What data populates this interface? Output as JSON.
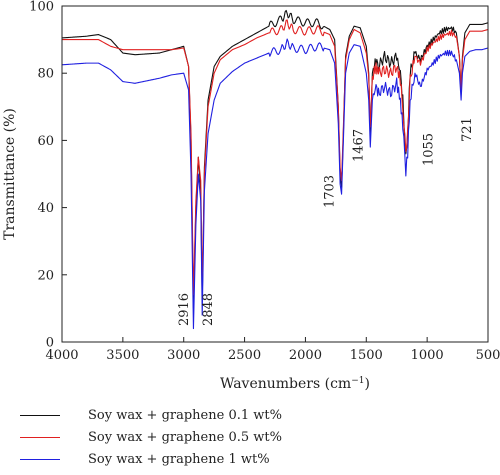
{
  "chart_data": {
    "type": "line",
    "title": "",
    "xlabel": "Wavenumbers (cm",
    "xlabel_sup": "−1",
    "xlabel_end": ")",
    "ylabel": "Transmittance (%)",
    "xlim": [
      4000,
      500
    ],
    "ylim": [
      0,
      100
    ],
    "x_ticks": [
      4000,
      3500,
      3000,
      2500,
      2000,
      1500,
      1000,
      500
    ],
    "y_ticks": [
      0,
      20,
      40,
      60,
      80,
      100
    ],
    "grid": false,
    "legend_position": "bottom",
    "annotations": [
      {
        "text": "2916",
        "x": 2916
      },
      {
        "text": "2848",
        "x": 2848
      },
      {
        "text": "1703",
        "x": 1703
      },
      {
        "text": "1467",
        "x": 1467
      },
      {
        "text": "1055",
        "x": 1055
      },
      {
        "text": "721",
        "x": 721
      }
    ],
    "series": [
      {
        "name": "Soy wax + graphene 0.1 wt%",
        "color": "#111111",
        "points": [
          [
            4000,
            90.5
          ],
          [
            3800,
            91
          ],
          [
            3700,
            91.5
          ],
          [
            3600,
            90
          ],
          [
            3500,
            86
          ],
          [
            3400,
            85.5
          ],
          [
            3200,
            86
          ],
          [
            3100,
            87
          ],
          [
            3000,
            88
          ],
          [
            2960,
            82
          ],
          [
            2940,
            60
          ],
          [
            2920,
            10
          ],
          [
            2900,
            40
          ],
          [
            2880,
            55
          ],
          [
            2860,
            45
          ],
          [
            2848,
            12
          ],
          [
            2830,
            52
          ],
          [
            2800,
            72
          ],
          [
            2750,
            82
          ],
          [
            2700,
            85
          ],
          [
            2600,
            88
          ],
          [
            2500,
            90
          ],
          [
            2400,
            92
          ],
          [
            2300,
            94
          ],
          [
            2200,
            96
          ],
          [
            2150,
            98
          ],
          [
            2100,
            96
          ],
          [
            2000,
            95
          ],
          [
            1900,
            95
          ],
          [
            1800,
            93
          ],
          [
            1760,
            90
          ],
          [
            1730,
            70
          ],
          [
            1715,
            50
          ],
          [
            1703,
            46
          ],
          [
            1690,
            60
          ],
          [
            1670,
            85
          ],
          [
            1640,
            91
          ],
          [
            1600,
            94
          ],
          [
            1550,
            93.5
          ],
          [
            1500,
            88
          ],
          [
            1480,
            80
          ],
          [
            1467,
            62
          ],
          [
            1450,
            80
          ],
          [
            1420,
            84
          ],
          [
            1400,
            82
          ],
          [
            1350,
            85
          ],
          [
            1300,
            83
          ],
          [
            1250,
            85
          ],
          [
            1220,
            80
          ],
          [
            1200,
            72
          ],
          [
            1175,
            55
          ],
          [
            1160,
            62
          ],
          [
            1140,
            80
          ],
          [
            1100,
            86
          ],
          [
            1055,
            84
          ],
          [
            1000,
            88
          ],
          [
            950,
            90
          ],
          [
            900,
            92
          ],
          [
            850,
            93
          ],
          [
            800,
            93.5
          ],
          [
            760,
            92
          ],
          [
            735,
            85
          ],
          [
            721,
            74
          ],
          [
            710,
            85
          ],
          [
            690,
            92
          ],
          [
            650,
            94.5
          ],
          [
            600,
            94.5
          ],
          [
            550,
            94.5
          ],
          [
            500,
            95
          ]
        ]
      },
      {
        "name": "Soy wax + graphene 0.5 wt%",
        "color": "#e02020",
        "points": [
          [
            4000,
            90
          ],
          [
            3800,
            90
          ],
          [
            3700,
            90
          ],
          [
            3600,
            88
          ],
          [
            3500,
            87
          ],
          [
            3400,
            87
          ],
          [
            3200,
            87
          ],
          [
            3100,
            87
          ],
          [
            3000,
            87.5
          ],
          [
            2960,
            82
          ],
          [
            2940,
            62
          ],
          [
            2920,
            14
          ],
          [
            2900,
            42
          ],
          [
            2880,
            55
          ],
          [
            2860,
            48
          ],
          [
            2848,
            16
          ],
          [
            2830,
            50
          ],
          [
            2800,
            70
          ],
          [
            2750,
            80
          ],
          [
            2700,
            84
          ],
          [
            2600,
            87
          ],
          [
            2500,
            88.5
          ],
          [
            2400,
            90.5
          ],
          [
            2300,
            92
          ],
          [
            2200,
            93
          ],
          [
            2150,
            95
          ],
          [
            2100,
            93
          ],
          [
            2000,
            92.5
          ],
          [
            1900,
            93
          ],
          [
            1800,
            91.5
          ],
          [
            1760,
            88
          ],
          [
            1730,
            70
          ],
          [
            1715,
            52
          ],
          [
            1703,
            48
          ],
          [
            1690,
            62
          ],
          [
            1670,
            84
          ],
          [
            1640,
            90
          ],
          [
            1600,
            93
          ],
          [
            1550,
            92
          ],
          [
            1500,
            86
          ],
          [
            1480,
            79
          ],
          [
            1467,
            64
          ],
          [
            1450,
            79
          ],
          [
            1420,
            82
          ],
          [
            1400,
            80
          ],
          [
            1350,
            81
          ],
          [
            1300,
            80
          ],
          [
            1250,
            82
          ],
          [
            1220,
            78
          ],
          [
            1200,
            70
          ],
          [
            1175,
            56
          ],
          [
            1160,
            62
          ],
          [
            1140,
            78
          ],
          [
            1100,
            85
          ],
          [
            1055,
            83
          ],
          [
            1000,
            87
          ],
          [
            950,
            89
          ],
          [
            900,
            90.5
          ],
          [
            850,
            91.5
          ],
          [
            800,
            92
          ],
          [
            760,
            91
          ],
          [
            735,
            85
          ],
          [
            721,
            75
          ],
          [
            710,
            84
          ],
          [
            690,
            90
          ],
          [
            650,
            92.5
          ],
          [
            600,
            92.5
          ],
          [
            550,
            92.5
          ],
          [
            500,
            93
          ]
        ]
      },
      {
        "name": "Soy wax + graphene 1 wt%",
        "color": "#2020e0",
        "points": [
          [
            4000,
            82.5
          ],
          [
            3800,
            83
          ],
          [
            3700,
            83
          ],
          [
            3600,
            81
          ],
          [
            3500,
            77.5
          ],
          [
            3400,
            77
          ],
          [
            3200,
            78.5
          ],
          [
            3100,
            79.5
          ],
          [
            3000,
            80
          ],
          [
            2960,
            75
          ],
          [
            2940,
            50
          ],
          [
            2920,
            4
          ],
          [
            2900,
            35
          ],
          [
            2880,
            50
          ],
          [
            2860,
            42
          ],
          [
            2848,
            8
          ],
          [
            2830,
            45
          ],
          [
            2800,
            62
          ],
          [
            2750,
            72
          ],
          [
            2700,
            77
          ],
          [
            2600,
            80.5
          ],
          [
            2500,
            83
          ],
          [
            2400,
            84.5
          ],
          [
            2300,
            86
          ],
          [
            2200,
            87
          ],
          [
            2150,
            89
          ],
          [
            2100,
            87.5
          ],
          [
            2000,
            87
          ],
          [
            1900,
            88
          ],
          [
            1800,
            87
          ],
          [
            1760,
            83
          ],
          [
            1730,
            65
          ],
          [
            1715,
            47
          ],
          [
            1703,
            44
          ],
          [
            1690,
            58
          ],
          [
            1670,
            80
          ],
          [
            1640,
            86
          ],
          [
            1600,
            88.5
          ],
          [
            1550,
            88
          ],
          [
            1500,
            80
          ],
          [
            1480,
            72
          ],
          [
            1467,
            58
          ],
          [
            1450,
            72
          ],
          [
            1420,
            76
          ],
          [
            1400,
            74
          ],
          [
            1350,
            76
          ],
          [
            1300,
            74
          ],
          [
            1250,
            77
          ],
          [
            1220,
            72
          ],
          [
            1200,
            64
          ],
          [
            1175,
            51
          ],
          [
            1160,
            56
          ],
          [
            1140,
            72
          ],
          [
            1100,
            80
          ],
          [
            1055,
            76
          ],
          [
            1000,
            81
          ],
          [
            950,
            83
          ],
          [
            900,
            85
          ],
          [
            850,
            86
          ],
          [
            800,
            86
          ],
          [
            760,
            84
          ],
          [
            735,
            80
          ],
          [
            721,
            72
          ],
          [
            710,
            80
          ],
          [
            690,
            85
          ],
          [
            650,
            86.5
          ],
          [
            600,
            87
          ],
          [
            550,
            87
          ],
          [
            500,
            87.5
          ]
        ]
      }
    ]
  }
}
